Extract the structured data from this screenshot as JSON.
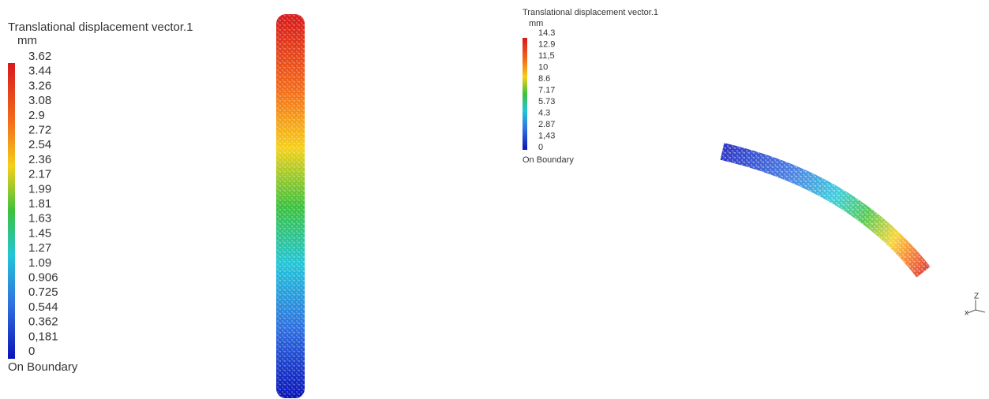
{
  "panels": [
    {
      "legend": {
        "title": "Translational displacement vector.1",
        "unit": "mm",
        "labels": [
          "3.62",
          "3.44",
          "3.26",
          "3.08",
          "2.9",
          "2.72",
          "2.54",
          "2.36",
          "2.17",
          "1.99",
          "1.81",
          "1.63",
          "1.45",
          "1.27",
          "1.09",
          "0.906",
          "0.725",
          "0.544",
          "0.362",
          "0,181",
          "0"
        ],
        "footer": "On Boundary"
      }
    },
    {
      "legend": {
        "title": "Translational displacement vector.1",
        "unit": "mm",
        "labels": [
          "14.3",
          "12.9",
          "11,5",
          "10",
          "8.6",
          "7.17",
          "5.73",
          "4.3",
          "2.87",
          "1,43",
          "0"
        ],
        "footer": "On Boundary"
      },
      "triad": {
        "z": "Z",
        "x": "x"
      }
    }
  ]
}
